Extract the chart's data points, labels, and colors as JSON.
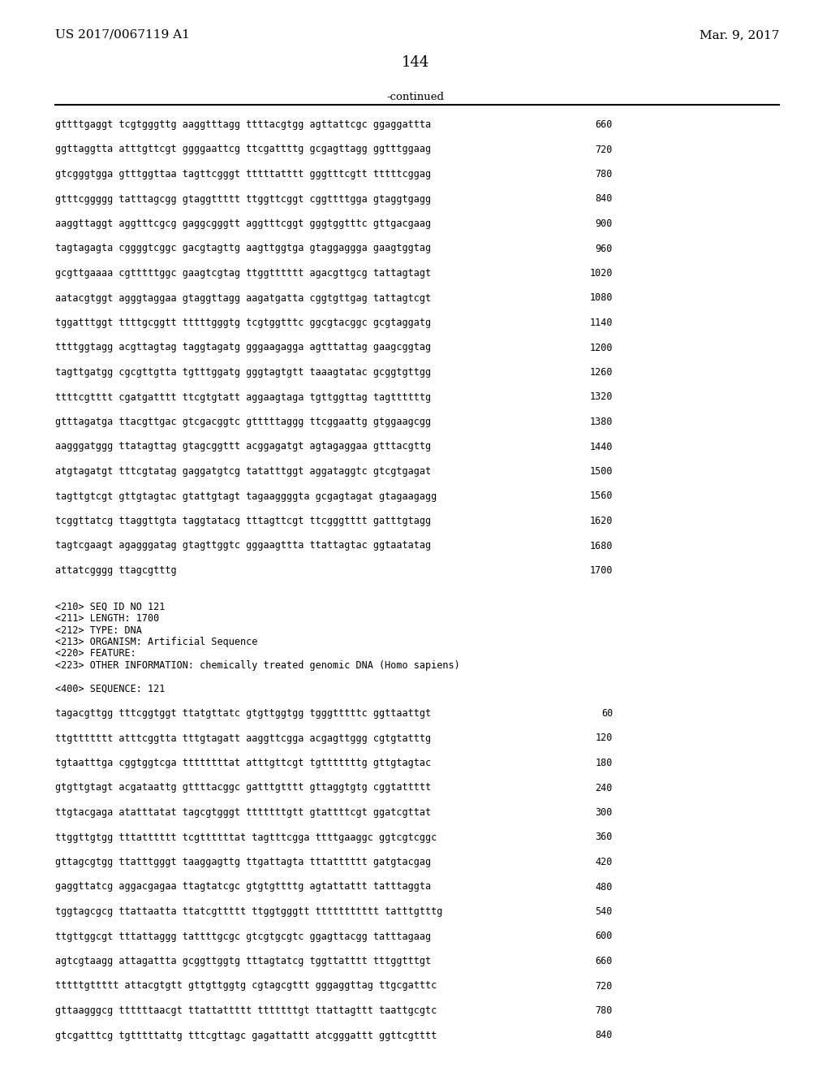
{
  "bg_color": "#ffffff",
  "header_left": "US 2017/0067119 A1",
  "header_right": "Mar. 9, 2017",
  "page_number": "144",
  "continued_label": "-continued",
  "sequence_lines_top": [
    [
      "gttttgaggt tcgtgggttg aaggtttagg ttttacgtgg agttattcgc ggaggattta",
      "660"
    ],
    [
      "ggttaggtta atttgttcgt ggggaattcg ttcgattttg gcgagttagg ggtttggaag",
      "720"
    ],
    [
      "gtcgggtgga gtttggttaa tagttcgggt tttttatttt gggtttcgtt tttttcggag",
      "780"
    ],
    [
      "gtttcggggg tatttagcgg gtaggttttt ttggttcggt cggttttgga gtaggtgagg",
      "840"
    ],
    [
      "aaggttaggt aggtttcgcg gaggcgggtt aggtttcggt gggtggtttc gttgacgaag",
      "900"
    ],
    [
      "tagtagagta cggggtcggc gacgtagttg aagttggtga gtaggaggga gaagtggtag",
      "960"
    ],
    [
      "gcgttgaaaa cgtttttggc gaagtcgtag ttggtttttt agacgttgcg tattagtagt",
      "1020"
    ],
    [
      "aatacgtggt agggtaggaa gtaggttagg aagatgatta cggtgttgag tattagtcgt",
      "1080"
    ],
    [
      "tggatttggt ttttgcggtt tttttgggtg tcgtggtttc ggcgtacggc gcgtaggatg",
      "1140"
    ],
    [
      "ttttggtagg acgttagtag taggtagatg gggaagagga agtttattag gaagcggtag",
      "1200"
    ],
    [
      "tagttgatgg cgcgttgtta tgtttggatg gggtagtgtt taaagtatac gcggtgttgg",
      "1260"
    ],
    [
      "ttttcgtttt cgatgatttt ttcgtgtatt aggaagtaga tgttggttag tagttttttg",
      "1320"
    ],
    [
      "gtttagatga ttacgttgac gtcgacggtc gtttttaggg ttcggaattg gtggaagcgg",
      "1380"
    ],
    [
      "aagggatggg ttatagttag gtagcggttt acggagatgt agtagaggaa gtttacgttg",
      "1440"
    ],
    [
      "atgtagatgt tttcgtatag gaggatgtcg tatatttggt aggataggtc gtcgtgagat",
      "1500"
    ],
    [
      "tagttgtcgt gttgtagtac gtattgtagt tagaaggggta gcgagtagat gtagaagagg",
      "1560"
    ],
    [
      "tcggttatcg ttaggttgta taggtatacg tttagttcgt ttcgggtttt gatttgtagg",
      "1620"
    ],
    [
      "tagtcgaagt agagggatag gtagttggtc gggaagttta ttattagtac ggtaatatag",
      "1680"
    ],
    [
      "attatcgggg ttagcgtttg",
      "1700"
    ]
  ],
  "metadata_lines": [
    "<210> SEQ ID NO 121",
    "<211> LENGTH: 1700",
    "<212> TYPE: DNA",
    "<213> ORGANISM: Artificial Sequence",
    "<220> FEATURE:",
    "<223> OTHER INFORMATION: chemically treated genomic DNA (Homo sapiens)"
  ],
  "sequence_label": "<400> SEQUENCE: 121",
  "sequence_lines_bottom": [
    [
      "tagacgttgg tttcggtggt ttatgttatc gtgttggtgg tgggtttttc ggttaattgt",
      "60"
    ],
    [
      "ttgttttttt atttcggtta tttgtagatt aaggttcgga acgagttggg cgtgtatttg",
      "120"
    ],
    [
      "tgtaatttga cggtggtcga ttttttttat atttgttcgt tgtttttttg gttgtagtac",
      "180"
    ],
    [
      "gtgttgtagt acgataattg gttttacggc gatttgtttt gttaggtgtg cggtattttt",
      "240"
    ],
    [
      "ttgtacgaga atatttatat tagcgtgggt tttttttgtt gtattttcgt ggatcgttat",
      "300"
    ],
    [
      "ttggttgtgg tttatttttt tcgttttttat tagtttcgga ttttgaaggc ggtcgtcggc",
      "360"
    ],
    [
      "gttagcgtgg ttatttgggt taaggagttg ttgattagta tttatttttt gatgtacgag",
      "420"
    ],
    [
      "gaggttatcg aggacgagaa ttagtatcgc gtgtgttttg agtattattt tatttaggta",
      "480"
    ],
    [
      "tggtagcgcg ttattaatta ttatcgttttt ttggtgggtt ttttttttttt tatttgtttg",
      "540"
    ],
    [
      "ttgttggcgt tttattaggg tattttgcgc gtcgtgcgtc ggagttacgg tatttagaag",
      "600"
    ],
    [
      "agtcgtaagg attagattta gcggttggtg tttagtatcg tggttatttt tttggtttgt",
      "660"
    ],
    [
      "tttttgttttt attacgtgtt gttgttggtg cgtagcgttt gggaggttag ttgcgatttc",
      "720"
    ],
    [
      "gttaagggcg ttttttaacgt ttattattttt tttttttgt ttattagttt taattgcgtc",
      "780"
    ],
    [
      "gtcgatttcg tgtttttattg tttcgttagc gagattattt atcgggattt ggttcgtttt",
      "840"
    ]
  ]
}
